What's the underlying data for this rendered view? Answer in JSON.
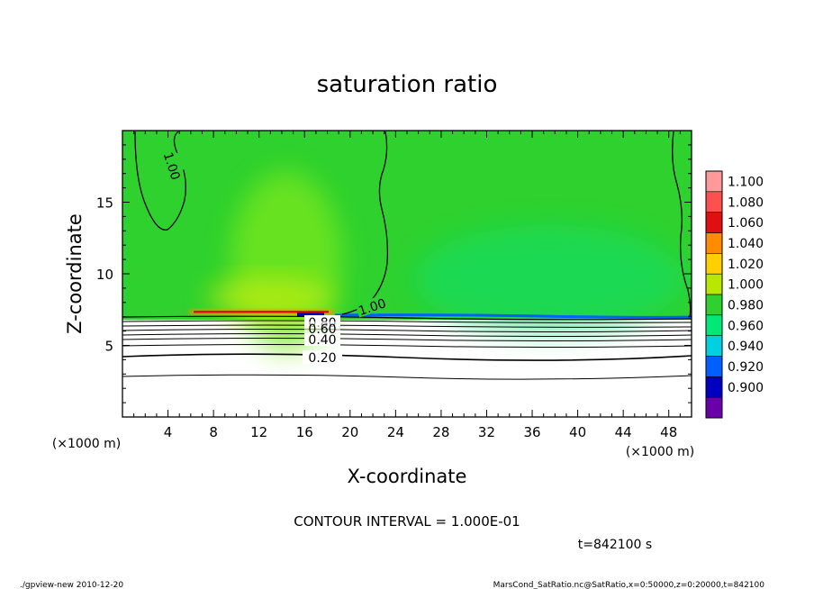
{
  "chart_data": {
    "type": "heatmap",
    "title": "saturation ratio",
    "xlabel": "X-coordinate",
    "ylabel": "Z-coordinate",
    "x_unit": "(×1000 m)",
    "y_unit": "(×1000 m)",
    "xlim": [
      0,
      50
    ],
    "ylim": [
      0,
      20
    ],
    "x_ticks": [
      4,
      8,
      12,
      16,
      20,
      24,
      28,
      32,
      36,
      40,
      44,
      48
    ],
    "y_ticks": [
      5,
      10,
      15
    ],
    "colorbar": {
      "levels": [
        "1.100",
        "1.080",
        "1.060",
        "1.040",
        "1.020",
        "1.000",
        "0.980",
        "0.960",
        "0.940",
        "0.920",
        "0.900"
      ],
      "colors": [
        "#ff9a9a",
        "#ff5050",
        "#e01010",
        "#ff8c00",
        "#ffd000",
        "#b8e800",
        "#2ed12e",
        "#00e878",
        "#00d0e0",
        "#0060ff",
        "#0000c0",
        "#6a00a8"
      ]
    },
    "contour_labels": [
      "1.00",
      "1.00",
      "0.80",
      "0.60",
      "0.40",
      "0.20"
    ],
    "cloud_base_height": 7.0,
    "contour_interval": "CONTOUR INTERVAL = 1.000E-01",
    "time": "t=842100 s"
  },
  "footer": {
    "left": "./gpview-new   2010-12-20",
    "right": "MarsCond_SatRatio.nc@SatRatio,x=0:50000,z=0:20000,t=842100"
  },
  "colors": {
    "background": "#ffffff",
    "saturated_green": "#2ed12e",
    "axis": "#000000"
  }
}
